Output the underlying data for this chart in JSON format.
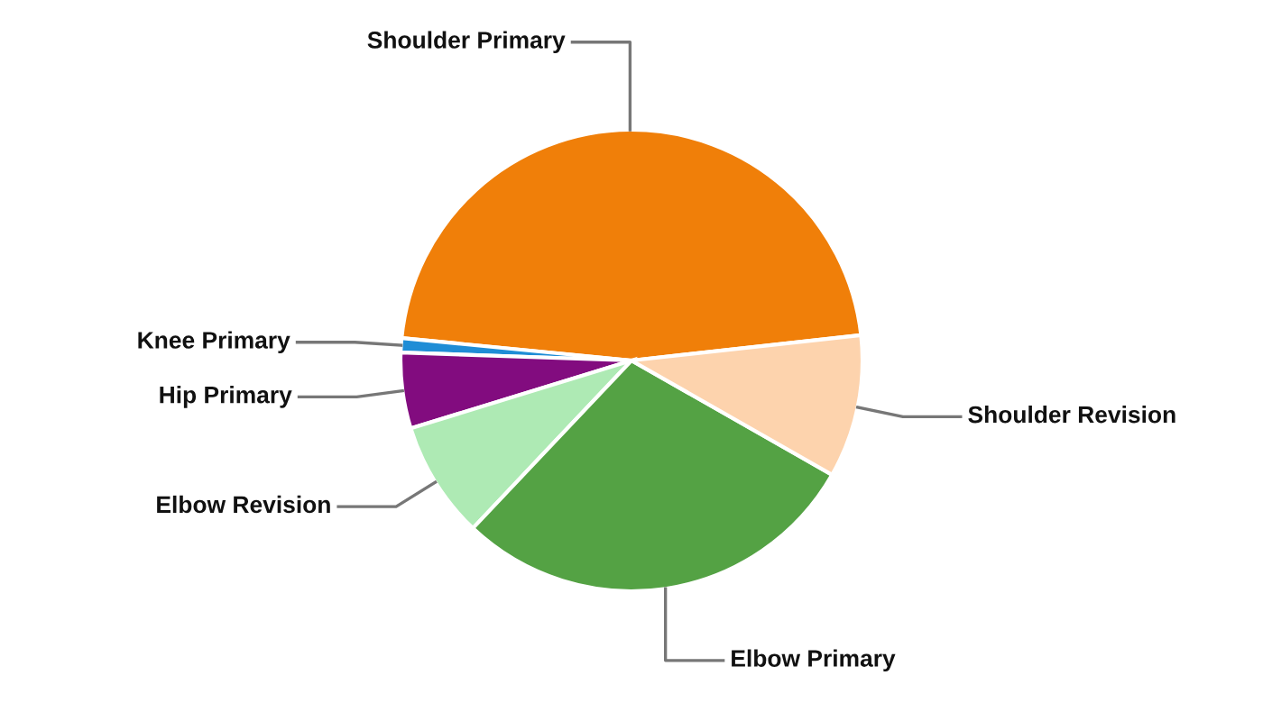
{
  "chart_data": {
    "type": "pie",
    "categories": [
      "Shoulder Primary",
      "Knee Primary",
      "Hip Primary",
      "Elbow Revision",
      "Elbow Primary",
      "Shoulder Revision"
    ],
    "values": [
      46.7,
      1.0,
      5.3,
      8.2,
      28.8,
      10.0
    ],
    "colors": [
      "#f07f09",
      "#1f8dd6",
      "#820c7f",
      "#aeeab4",
      "#54a244",
      "#fdd3ad"
    ]
  }
}
